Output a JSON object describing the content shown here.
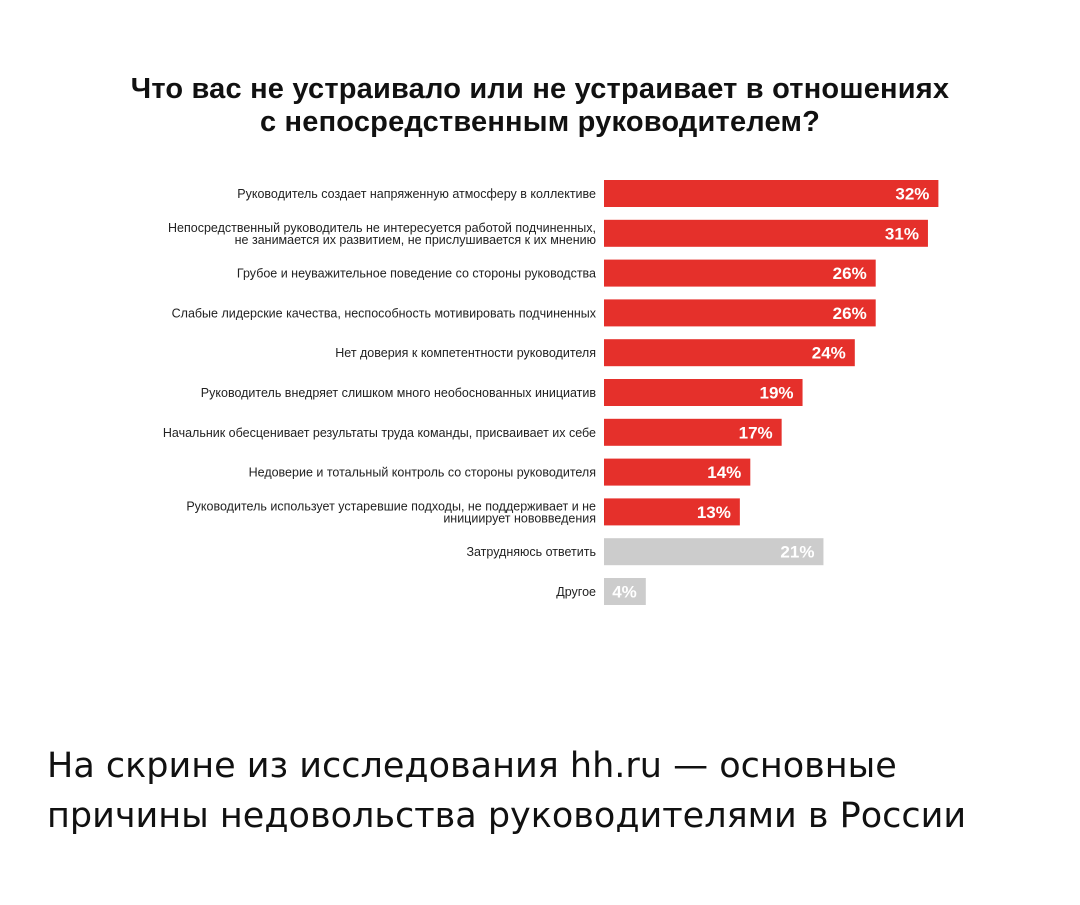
{
  "title": {
    "line1": "Что вас не устраивало или не устраивает в отношениях",
    "line2": "с непосредственным руководителем?"
  },
  "chart_data": {
    "type": "bar",
    "orientation": "horizontal",
    "unit": "%",
    "categories": [
      [
        "Руководитель создает напряженную атмосферу в коллективе"
      ],
      [
        "Непосредственный руководитель не интересуется работой подчиненных,",
        "не занимается их развитием, не прислушивается к их мнению"
      ],
      [
        "Грубое и неуважительное поведение со стороны руководства"
      ],
      [
        "Слабые лидерские качества, неспособность мотивировать подчиненных"
      ],
      [
        "Нет доверия к компетентности руководителя"
      ],
      [
        "Руководитель внедряет слишком много необоснованных инициатив"
      ],
      [
        "Начальник обесценивает результаты труда команды, присваивает их себе"
      ],
      [
        "Недоверие и тотальный контроль со стороны руководителя"
      ],
      [
        "Руководитель использует устаревшие подходы, не поддерживает и не",
        "инициирует нововведения"
      ],
      [
        "Затрудняюсь ответить"
      ],
      [
        "Другое"
      ]
    ],
    "values": [
      32,
      31,
      26,
      26,
      24,
      19,
      17,
      14,
      13,
      21,
      4
    ],
    "data_labels": [
      "32%",
      "31%",
      "26%",
      "26%",
      "24%",
      "19%",
      "17%",
      "14%",
      "13%",
      "21%",
      "4%"
    ],
    "bar_colors": [
      "#e5302b",
      "#e5302b",
      "#e5302b",
      "#e5302b",
      "#e5302b",
      "#e5302b",
      "#e5302b",
      "#e5302b",
      "#e5302b",
      "#cccccc",
      "#cccccc"
    ],
    "grid": false,
    "legend": "none"
  },
  "caption": {
    "line1": "На скрине из исследования hh.ru — основные",
    "line2": "причины недовольства руководителями в России"
  }
}
